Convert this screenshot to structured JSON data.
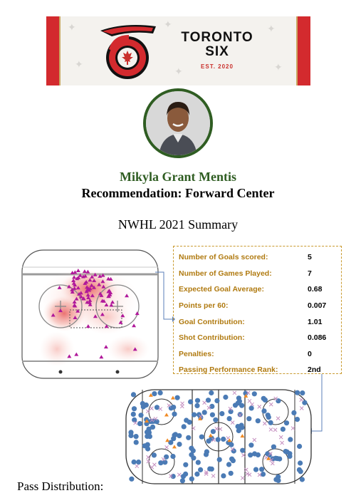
{
  "banner": {
    "team_line1": "TORONTO",
    "team_line2": "SIX",
    "est": "EST. 2020",
    "logo_icon": "toronto-six-logo-icon",
    "colors": {
      "red": "#d32a2e",
      "gold": "#c9a862",
      "black": "#111111"
    }
  },
  "player": {
    "name": "Mikyla Grant Mentis",
    "recommendation": "Recommendation: Forward Center",
    "name_color": "#2f5d22"
  },
  "summary_title": "NWHL 2021 Summary",
  "stats": [
    {
      "label": "Number of Goals scored:",
      "value": "5"
    },
    {
      "label": "Number of Games Played:",
      "value": "7"
    },
    {
      "label": "Expected Goal Average:",
      "value": "0.68"
    },
    {
      "label": "Points per 60:",
      "value": "0.007"
    },
    {
      "label": "Goal Contribution:",
      "value": "1.01"
    },
    {
      "label": "Shot Contribution:",
      "value": "0.086"
    },
    {
      "label": "Penalties:",
      "value": "0"
    },
    {
      "label": "Passing Performance Rank:",
      "value": "2nd"
    }
  ],
  "pass_label": "Pass Distribution:"
}
